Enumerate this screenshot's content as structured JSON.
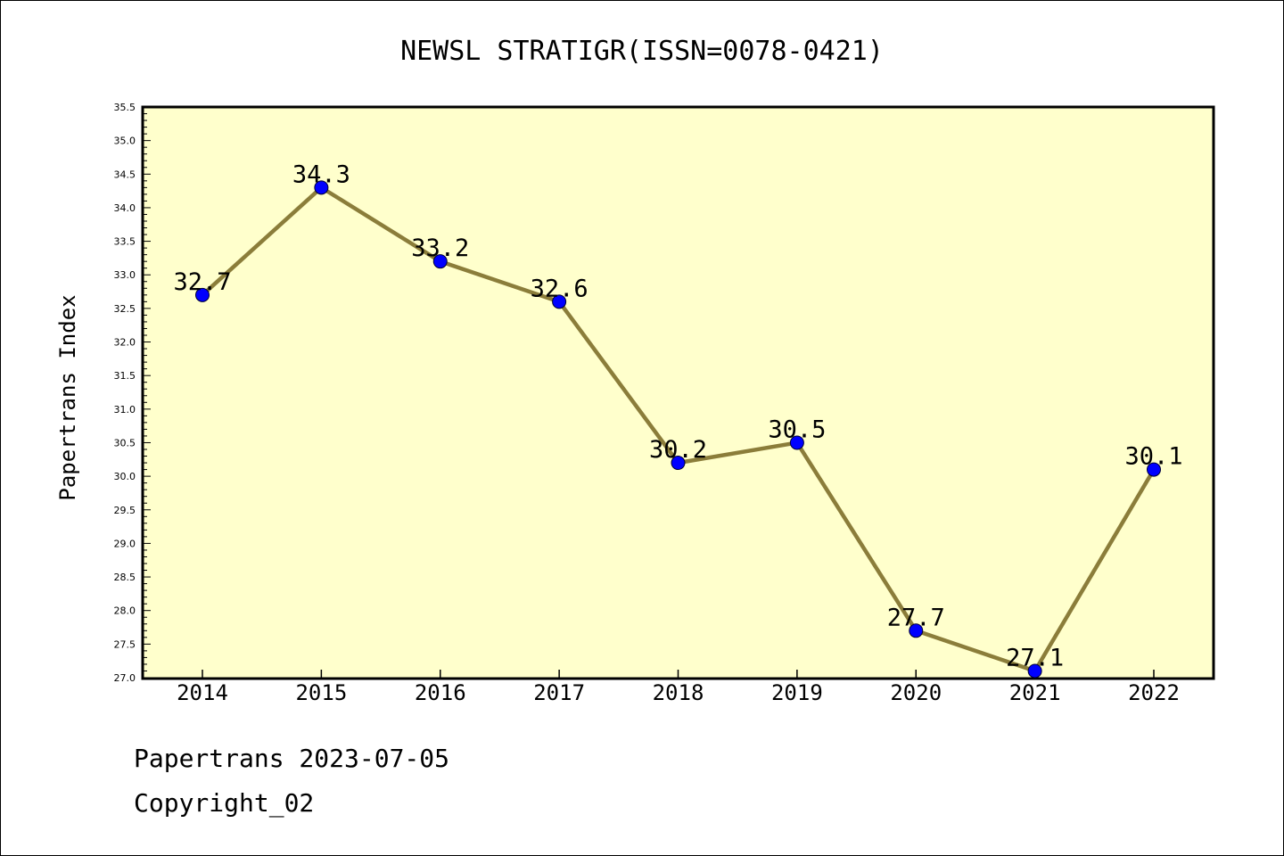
{
  "chart_data": {
    "type": "line",
    "title": "NEWSL STRATIGR(ISSN=0078-0421)",
    "xlabel": "",
    "ylabel": "Papertrans Index",
    "categories": [
      "2014",
      "2015",
      "2016",
      "2017",
      "2018",
      "2019",
      "2020",
      "2021",
      "2022"
    ],
    "values": [
      32.7,
      34.3,
      33.2,
      32.6,
      30.2,
      30.5,
      27.7,
      27.1,
      30.1
    ],
    "value_labels": [
      "32.7",
      "34.3",
      "33.2",
      "32.6",
      "30.2",
      "30.5",
      "27.7",
      "27.1",
      "30.1"
    ],
    "ylim": [
      27.0,
      35.5
    ],
    "yticks": [
      "27.0",
      "27.5",
      "28.0",
      "28.5",
      "29.0",
      "29.5",
      "30.0",
      "30.5",
      "31.0",
      "31.5",
      "32.0",
      "32.5",
      "33.0",
      "33.5",
      "34.0",
      "34.5",
      "35.0",
      "35.5"
    ],
    "grid": false,
    "colors": {
      "plot_background": "#ffffcc",
      "line": "#8b7d3a",
      "marker": "#0000ff"
    }
  },
  "footer": {
    "line1": "Papertrans 2023-07-05",
    "line2": "Copyright_02"
  }
}
